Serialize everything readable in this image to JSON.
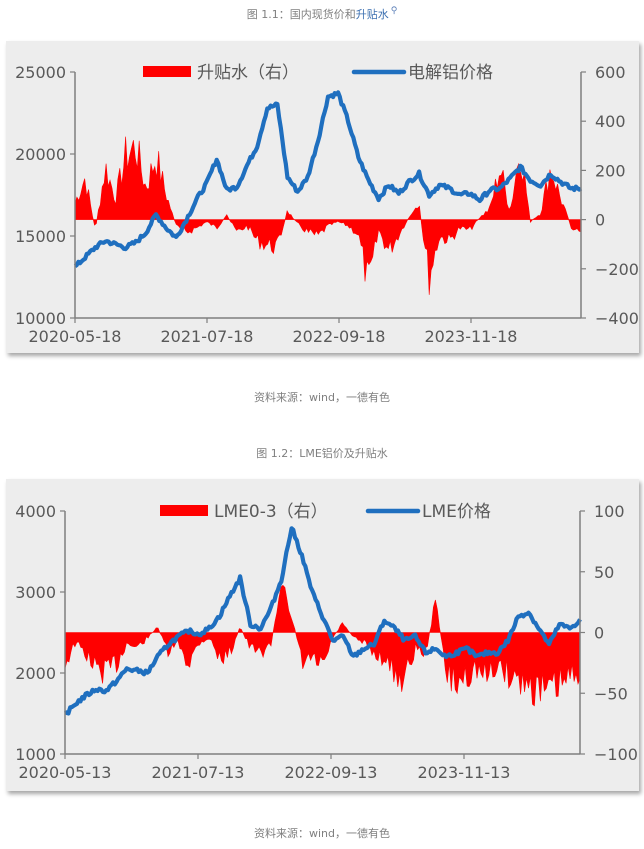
{
  "figure1": {
    "caption_prefix": "图 1.1：国内现货价和",
    "caption_highlight": "升贴水",
    "search_icon": "search-icon",
    "source": "资料来源：wind，一德有色"
  },
  "figure2": {
    "caption": "图 1.2：LME铝价及升贴水",
    "source": "资料来源：wind，一德有色"
  },
  "chart_data": [
    {
      "type": "bar+line",
      "title": "图 1.1：国内现货价和升贴水",
      "legend": [
        "升贴水（右）",
        "电解铝价格"
      ],
      "legend_position": "top-center",
      "x_tick_labels": [
        "2020-05-18",
        "2021-07-18",
        "2022-09-18",
        "2023-11-18"
      ],
      "y_left": {
        "ticks": [
          10000,
          15000,
          20000,
          25000
        ],
        "range": [
          10000,
          25000
        ]
      },
      "y_right": {
        "ticks": [
          -400,
          -200,
          0,
          200,
          400,
          600
        ],
        "range": [
          -400,
          600
        ]
      },
      "grid": false,
      "colors": {
        "bar": "#ff0000",
        "line": "#1f6fbf",
        "background": "#ededed"
      },
      "series": [
        {
          "name": "电解铝价格",
          "axis": "left",
          "type": "line",
          "x": [
            0.0,
            0.02,
            0.04,
            0.06,
            0.08,
            0.1,
            0.12,
            0.14,
            0.16,
            0.18,
            0.2,
            0.22,
            0.24,
            0.26,
            0.28,
            0.3,
            0.32,
            0.34,
            0.36,
            0.38,
            0.4,
            0.42,
            0.44,
            0.46,
            0.48,
            0.5,
            0.52,
            0.54,
            0.56,
            0.58,
            0.6,
            0.62,
            0.64,
            0.66,
            0.68,
            0.7,
            0.72,
            0.74,
            0.76,
            0.78,
            0.8,
            0.82,
            0.84,
            0.86,
            0.88,
            0.9,
            0.92,
            0.94,
            0.96,
            0.98,
            1.0
          ],
          "values": [
            13100,
            13700,
            14300,
            14700,
            14500,
            14300,
            14600,
            15200,
            16300,
            15500,
            14900,
            16000,
            17200,
            18200,
            19700,
            17800,
            18000,
            19300,
            20500,
            22800,
            23000,
            18600,
            17700,
            18600,
            20800,
            23500,
            23700,
            22000,
            19800,
            18400,
            17300,
            18100,
            17600,
            18300,
            18800,
            17500,
            18100,
            17900,
            17500,
            17600,
            17200,
            17800,
            17900,
            18500,
            19200,
            18400,
            18100,
            18800,
            18300,
            17900,
            17900
          ]
        },
        {
          "name": "升贴水（右）",
          "axis": "right",
          "type": "bar",
          "x_note": "normalized time 0..1",
          "values_sample": [
            80,
            200,
            -50,
            250,
            100,
            300,
            350,
            150,
            300,
            120,
            -30,
            -60,
            -40,
            -10,
            -40,
            20,
            -60,
            -30,
            -100,
            -120,
            -130,
            40,
            -20,
            -60,
            -80,
            -30,
            -10,
            -30,
            -70,
            -320,
            -50,
            -150,
            -70,
            10,
            60,
            -270,
            -80,
            -100,
            -40,
            -50,
            10,
            50,
            250,
            40,
            350,
            -10,
            30,
            250,
            100,
            -30,
            -80
          ]
        }
      ]
    },
    {
      "type": "bar+line",
      "title": "图 1.2：LME铝价及升贴水",
      "legend": [
        "LME0-3（右）",
        "LME价格"
      ],
      "legend_position": "top-center",
      "x_tick_labels": [
        "2020-05-13",
        "2021-07-13",
        "2022-09-13",
        "2023-11-13"
      ],
      "y_left": {
        "ticks": [
          1000,
          2000,
          3000,
          4000
        ],
        "range": [
          1000,
          4000
        ]
      },
      "y_right": {
        "ticks": [
          -100,
          -50,
          0,
          50,
          100
        ],
        "range": [
          -100,
          100
        ]
      },
      "grid": false,
      "colors": {
        "bar": "#ff0000",
        "line": "#1f6fbf",
        "background": "#ededed"
      },
      "series": [
        {
          "name": "LME价格",
          "axis": "left",
          "type": "line",
          "x": [
            0.0,
            0.02,
            0.04,
            0.06,
            0.08,
            0.1,
            0.12,
            0.14,
            0.16,
            0.18,
            0.2,
            0.22,
            0.24,
            0.26,
            0.28,
            0.3,
            0.32,
            0.34,
            0.36,
            0.38,
            0.4,
            0.42,
            0.44,
            0.46,
            0.48,
            0.5,
            0.52,
            0.54,
            0.56,
            0.58,
            0.6,
            0.62,
            0.64,
            0.66,
            0.68,
            0.7,
            0.72,
            0.74,
            0.76,
            0.78,
            0.8,
            0.82,
            0.84,
            0.86,
            0.88,
            0.9,
            0.92,
            0.94,
            0.96,
            0.98,
            1.0
          ],
          "values": [
            1480,
            1620,
            1720,
            1800,
            1780,
            1900,
            2050,
            2030,
            2000,
            2200,
            2350,
            2450,
            2520,
            2480,
            2550,
            2700,
            2950,
            3170,
            2600,
            2550,
            2800,
            3150,
            3800,
            3450,
            3000,
            2700,
            2400,
            2450,
            2200,
            2300,
            2350,
            2650,
            2550,
            2400,
            2450,
            2250,
            2300,
            2200,
            2250,
            2300,
            2200,
            2250,
            2250,
            2400,
            2700,
            2750,
            2550,
            2350,
            2600,
            2550,
            2650
          ]
        },
        {
          "name": "LME0-3（右）",
          "axis": "right",
          "type": "bar",
          "x_note": "normalized time 0..1",
          "values_sample": [
            -30,
            -10,
            -20,
            -35,
            -38,
            -30,
            -10,
            -15,
            -5,
            5,
            -20,
            -10,
            -30,
            -10,
            -5,
            -25,
            -20,
            5,
            -15,
            -20,
            -10,
            40,
            20,
            -30,
            -25,
            -35,
            -5,
            10,
            -5,
            -10,
            -20,
            -25,
            -40,
            -45,
            -15,
            -20,
            30,
            -40,
            -50,
            -40,
            -35,
            -45,
            -30,
            -40,
            -45,
            -50,
            -55,
            -60,
            -50,
            -45,
            -35
          ]
        }
      ]
    }
  ]
}
